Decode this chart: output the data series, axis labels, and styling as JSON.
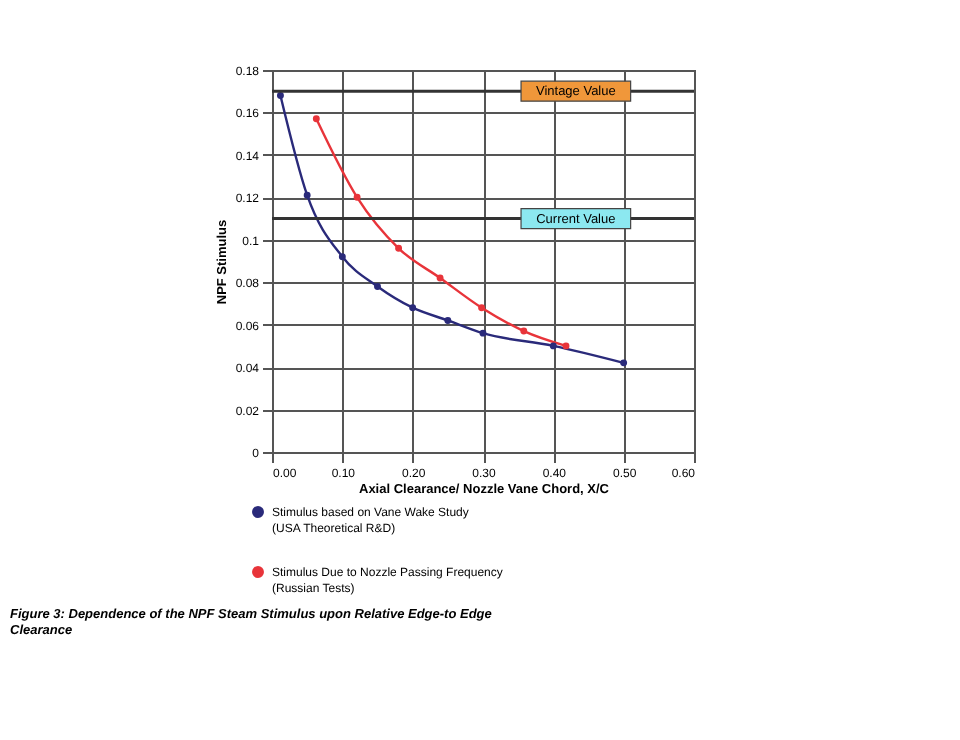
{
  "chart_data": {
    "type": "line",
    "xlabel": "Axial Clearance/ Nozzle Vane Chord, X/C",
    "ylabel": "NPF Stimulus",
    "xlim": [
      0,
      0.6
    ],
    "xticks": [
      {
        "value": 0,
        "label": "0.00"
      },
      {
        "value": 0.1,
        "label": "0.10"
      },
      {
        "value": 0.2,
        "label": "0.20"
      },
      {
        "value": 0.3,
        "label": "0.30"
      },
      {
        "value": 0.4,
        "label": "0.40"
      },
      {
        "value": 0.5,
        "label": "0.50"
      },
      {
        "value": 0.6,
        "label": "0.60"
      }
    ],
    "ylim": [
      0,
      0.18
    ],
    "yticks": [
      0,
      0.02,
      0.04,
      0.06,
      0.08,
      0.1,
      0.12,
      0.14,
      0.16,
      0.18
    ],
    "series": [
      {
        "name": "Stimulus based on Vane Wake Study\n(USA Theoretical R&D)",
        "color": "#2a2a7a",
        "x": [
          0.012,
          0.05,
          0.1,
          0.15,
          0.2,
          0.25,
          0.3,
          0.4,
          0.5
        ],
        "values": [
          0.168,
          0.121,
          0.092,
          0.078,
          0.068,
          0.062,
          0.056,
          0.05,
          0.042
        ]
      },
      {
        "name": "Stimulus Due to Nozzle Passing Frequency\n(Russian Tests)",
        "color": "#e8343a",
        "x": [
          0.063,
          0.121,
          0.18,
          0.239,
          0.298,
          0.358,
          0.418
        ],
        "values": [
          0.157,
          0.12,
          0.096,
          0.082,
          0.068,
          0.057,
          0.05
        ]
      }
    ],
    "ref_lines": [
      {
        "axis": "y",
        "value": 0.17,
        "label": "Vintage Value",
        "color": "#333333"
      },
      {
        "axis": "y",
        "value": 0.11,
        "label": "Current Value",
        "color": "#333333"
      }
    ],
    "annotations": [
      "Figure 3: Dependence of the NPF Steam Stimulus upon Relative Edge-to Edge Clearance"
    ],
    "grid": true,
    "legend": "bottom",
    "marker": "circle",
    "line_style": "solid"
  }
}
